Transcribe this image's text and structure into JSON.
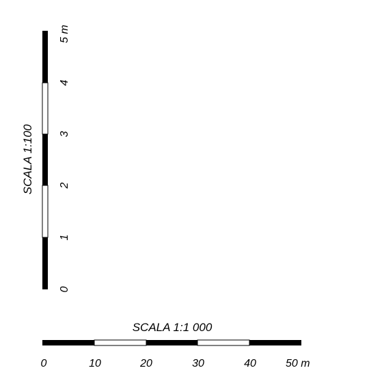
{
  "vertical_scale": {
    "title": "SCALA 1:100",
    "ticks": [
      "0",
      "1",
      "2",
      "3",
      "4",
      "5 m"
    ],
    "segments": [
      "black",
      "white",
      "black",
      "white",
      "black"
    ]
  },
  "horizontal_scale": {
    "title": "SCALA 1:1 000",
    "ticks": [
      "0",
      "10",
      "20",
      "30",
      "40",
      "50 m"
    ],
    "segments": [
      "black",
      "white",
      "black",
      "white",
      "black"
    ]
  },
  "colors": {
    "dark": "#000000",
    "light": "#ffffff"
  }
}
